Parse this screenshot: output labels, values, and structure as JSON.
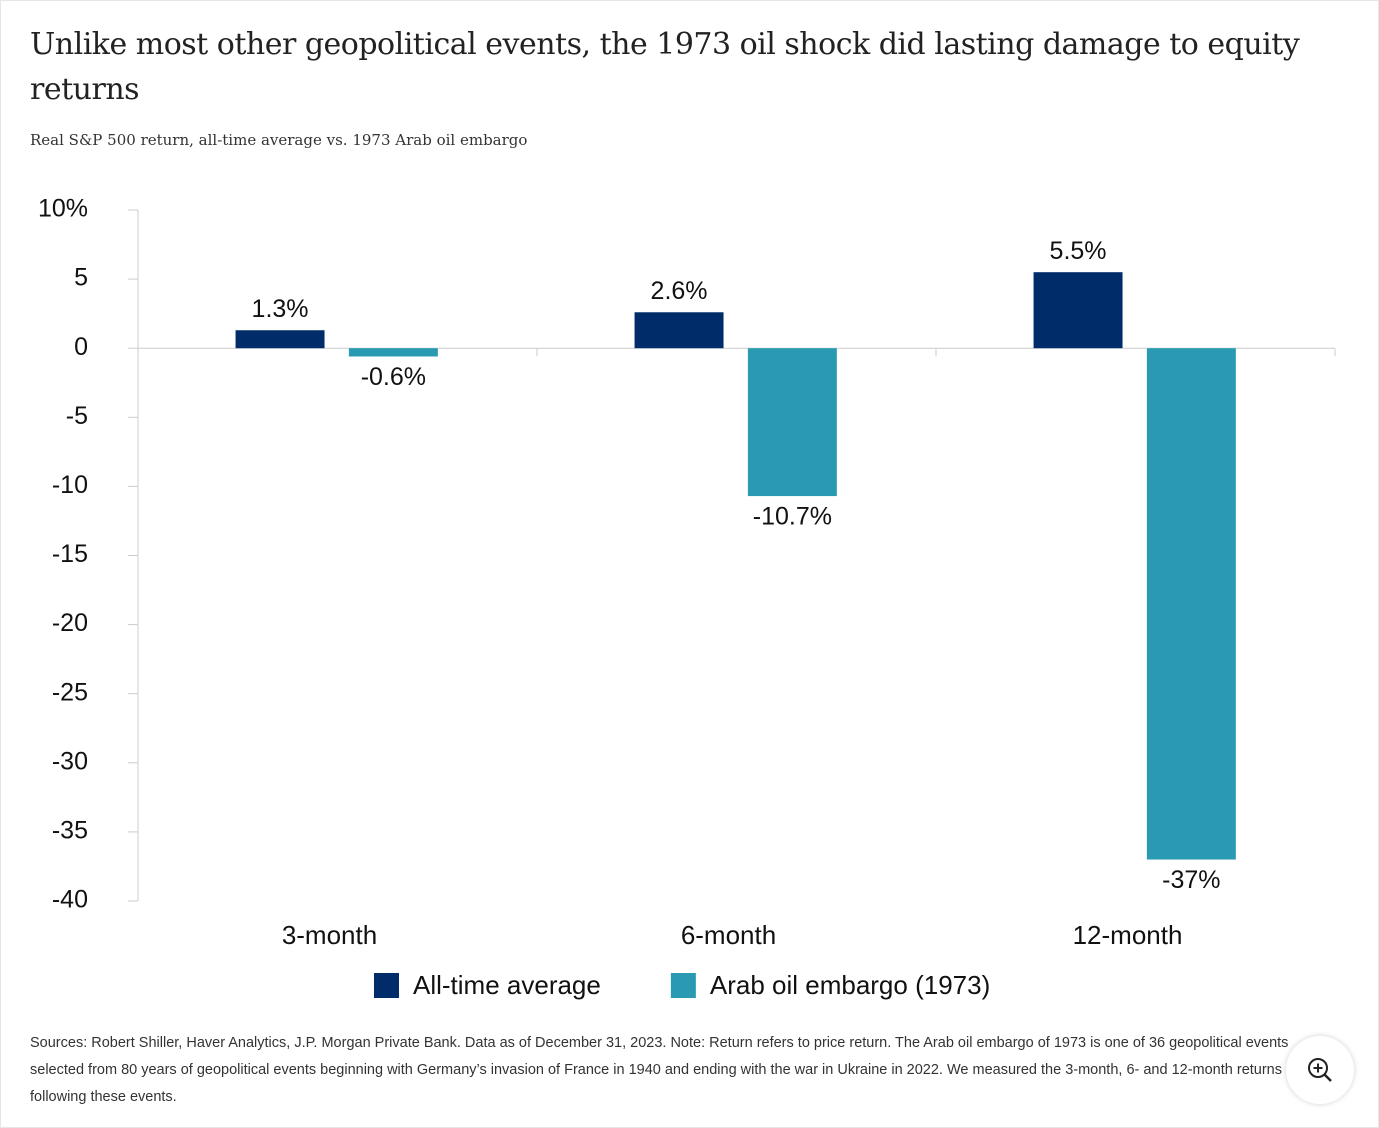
{
  "chart_data": {
    "type": "bar",
    "title": "Unlike most other geopolitical events, the 1973 oil shock did lasting damage to equity returns",
    "subtitle": "Real S&P 500 return, all-time average vs. 1973 Arab oil embargo",
    "categories": [
      "3-month",
      "6-month",
      "12-month"
    ],
    "series": [
      {
        "name": "All-time average",
        "color": "#002d6a",
        "values": [
          1.3,
          2.6,
          5.5
        ],
        "value_labels": [
          "1.3%",
          "2.6%",
          "5.5%"
        ]
      },
      {
        "name": "Arab oil embargo (1973)",
        "color": "#2a9ab3",
        "values": [
          -0.6,
          -10.7,
          -37
        ],
        "value_labels": [
          "-0.6%",
          "-10.7%",
          "-37%"
        ]
      }
    ],
    "ylim": [
      -40,
      10
    ],
    "yticks": [
      {
        "value": 10,
        "label": "10%"
      },
      5,
      0,
      -5,
      -10,
      -15,
      -20,
      -25,
      -30,
      -35,
      -40
    ],
    "grid": false,
    "legend": "bottom",
    "footnote": "Sources: Robert Shiller, Haver Analytics, J.P. Morgan Private Bank. Data as of December 31, 2023. Note: Return refers to price return. The Arab oil embargo of 1973 is one of 36 geopolitical events selected from 80 years of geopolitical events beginning with Germany’s invasion of France in 1940 and ending with the war in Ukraine in 2022. We measured the 3-month, 6- and 12-month returns following these events."
  }
}
